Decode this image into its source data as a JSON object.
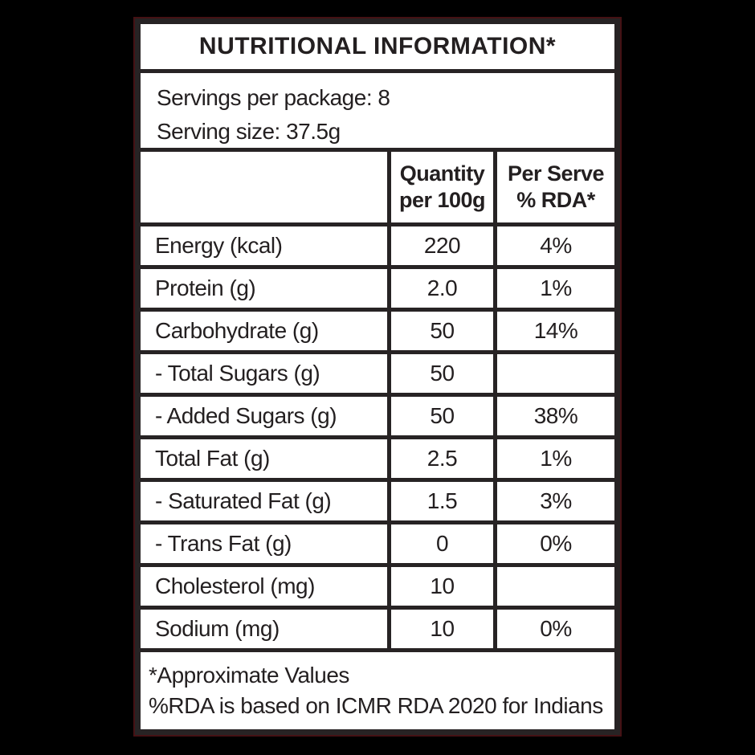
{
  "title": "NUTRITIONAL INFORMATION*",
  "servings": {
    "per_package": "Servings per package: 8",
    "serving_size": "Serving size: 37.5g"
  },
  "header": {
    "blank": "",
    "quantity_line1": "Quantity",
    "quantity_line2": "per 100g",
    "per_serve_line1": "Per Serve",
    "per_serve_line2": "% RDA*"
  },
  "rows": [
    {
      "label": "Energy (kcal)",
      "quantity": "220",
      "rda": "4%"
    },
    {
      "label": "Protein (g)",
      "quantity": "2.0",
      "rda": "1%"
    },
    {
      "label": "Carbohydrate (g)",
      "quantity": "50",
      "rda": "14%"
    },
    {
      "label": "- Total Sugars (g)",
      "quantity": "50",
      "rda": ""
    },
    {
      "label": "- Added Sugars (g)",
      "quantity": "50",
      "rda": "38%"
    },
    {
      "label": "Total Fat (g)",
      "quantity": "2.5",
      "rda": "1%"
    },
    {
      "label": "- Saturated Fat (g)",
      "quantity": "1.5",
      "rda": "3%"
    },
    {
      "label": "- Trans Fat (g)",
      "quantity": "0",
      "rda": "0%"
    },
    {
      "label": "Cholesterol (mg)",
      "quantity": "10",
      "rda": ""
    },
    {
      "label": "Sodium (mg)",
      "quantity": "10",
      "rda": "0%"
    }
  ],
  "footnotes": {
    "line1": "*Approximate Values",
    "line2": "%RDA is based on ICMR RDA 2020 for Indians"
  },
  "colors": {
    "background": "#000000",
    "panel": "#ffffff",
    "border": "#272324",
    "text": "#231f20",
    "outline_accent": "#451114"
  }
}
